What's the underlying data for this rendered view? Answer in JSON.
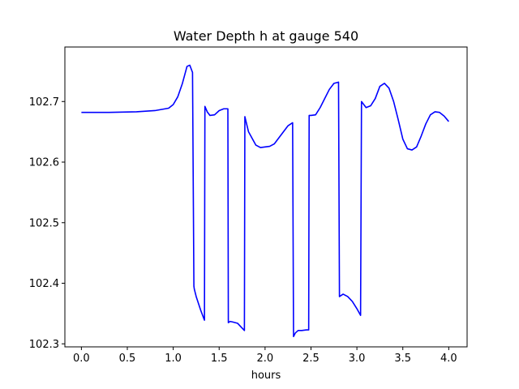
{
  "chart_data": {
    "type": "line",
    "title": "Water Depth h at gauge 540",
    "xlabel": "hours",
    "ylabel": "",
    "xlim": [
      -0.18,
      4.2
    ],
    "ylim": [
      102.295,
      102.79
    ],
    "xticks": [
      0.0,
      0.5,
      1.0,
      1.5,
      2.0,
      2.5,
      3.0,
      3.5,
      4.0
    ],
    "xtick_labels": [
      "0.0",
      "0.5",
      "1.0",
      "1.5",
      "2.0",
      "2.5",
      "3.0",
      "3.5",
      "4.0"
    ],
    "yticks": [
      102.3,
      102.4,
      102.5,
      102.6,
      102.7
    ],
    "ytick_labels": [
      "102.3",
      "102.4",
      "102.5",
      "102.6",
      "102.7"
    ],
    "grid": false,
    "series": [
      {
        "color": "#0000ff",
        "x": [
          0.0,
          0.3,
          0.6,
          0.8,
          0.95,
          1.0,
          1.05,
          1.1,
          1.15,
          1.18,
          1.21,
          1.225,
          1.23,
          1.25,
          1.3,
          1.34,
          1.345,
          1.37,
          1.4,
          1.45,
          1.5,
          1.55,
          1.595,
          1.6,
          1.62,
          1.65,
          1.7,
          1.75,
          1.775,
          1.78,
          1.82,
          1.9,
          1.95,
          2.0,
          2.05,
          2.1,
          2.15,
          2.2,
          2.25,
          2.3,
          2.31,
          2.33,
          2.36,
          2.4,
          2.45,
          2.475,
          2.48,
          2.5,
          2.55,
          2.6,
          2.65,
          2.7,
          2.75,
          2.8,
          2.81,
          2.85,
          2.9,
          2.95,
          3.0,
          3.04,
          3.05,
          3.1,
          3.15,
          3.2,
          3.25,
          3.3,
          3.35,
          3.4,
          3.45,
          3.5,
          3.55,
          3.6,
          3.65,
          3.7,
          3.75,
          3.8,
          3.85,
          3.9,
          3.95,
          4.0
        ],
        "y": [
          102.682,
          102.682,
          102.683,
          102.685,
          102.689,
          102.695,
          102.708,
          102.73,
          102.758,
          102.76,
          102.748,
          102.395,
          102.39,
          102.378,
          102.355,
          102.339,
          102.692,
          102.683,
          102.677,
          102.678,
          102.685,
          102.688,
          102.688,
          102.335,
          102.337,
          102.336,
          102.334,
          102.326,
          102.322,
          102.675,
          102.65,
          102.628,
          102.624,
          102.625,
          102.626,
          102.63,
          102.64,
          102.65,
          102.66,
          102.665,
          102.312,
          102.318,
          102.322,
          102.322,
          102.323,
          102.323,
          102.677,
          102.677,
          102.678,
          102.69,
          102.705,
          102.72,
          102.73,
          102.732,
          102.378,
          102.382,
          102.378,
          102.37,
          102.358,
          102.347,
          102.7,
          102.69,
          102.693,
          102.705,
          102.725,
          102.73,
          102.722,
          102.7,
          102.67,
          102.638,
          102.622,
          102.62,
          102.625,
          102.643,
          102.663,
          102.678,
          102.683,
          102.682,
          102.676,
          102.667
        ]
      }
    ]
  }
}
